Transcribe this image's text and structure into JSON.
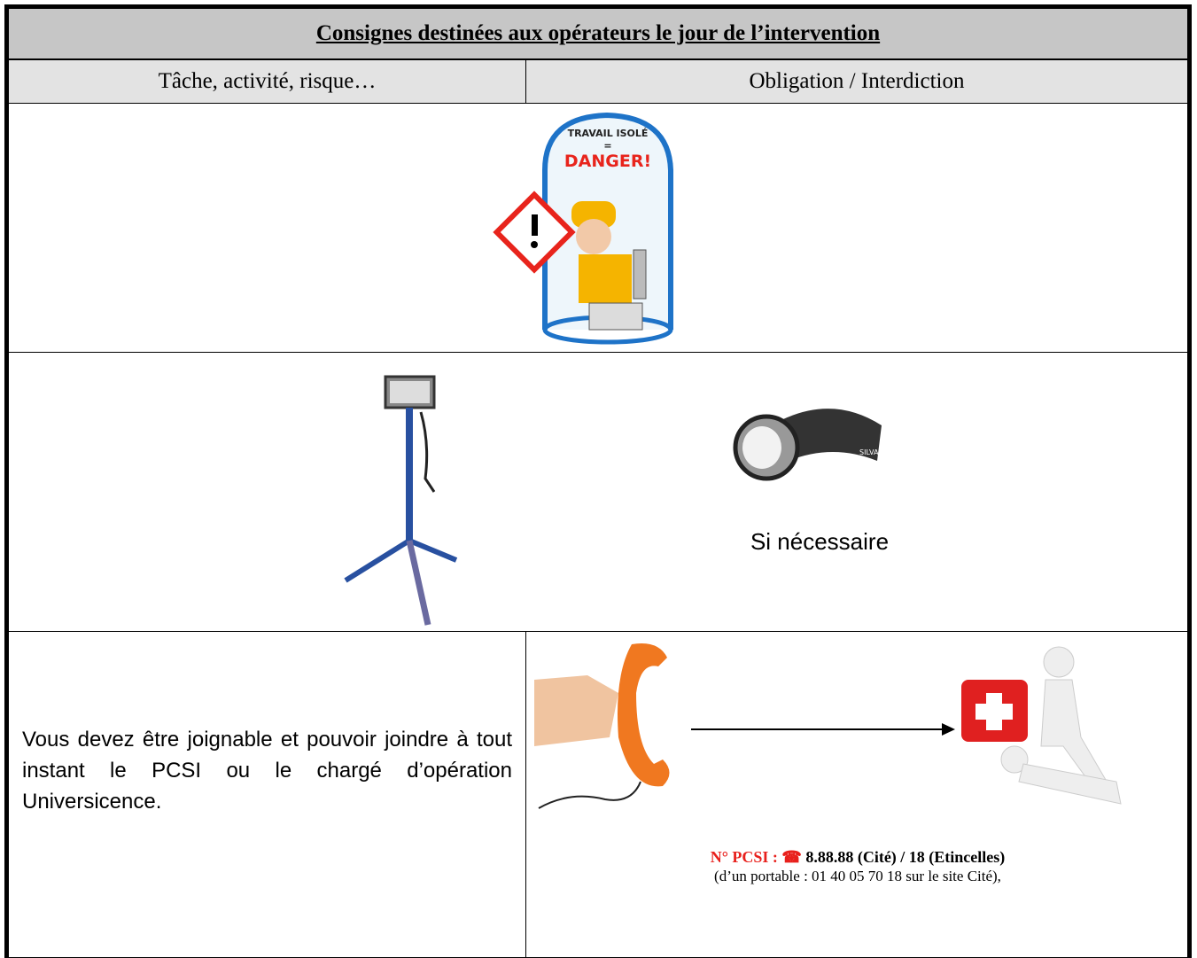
{
  "table": {
    "title": "Consignes destinées aux opérateurs le jour de l’intervention",
    "header": [
      "Tâche, activité, risque…",
      "Obligation / Interdiction"
    ],
    "rows": [
      {
        "illustration": {
          "label": "TRAVAIL ISOLÉ",
          "sign": "=",
          "warning": "DANGER!"
        }
      },
      {
        "right": {
          "brand": "SILVA",
          "note": "Si nécessaire"
        }
      },
      {
        "left": "Vous devez être joignable et pouvoir joindre à tout instant le PCSI ou le chargé d’opération Universicence.",
        "right": {
          "label": "N° PCSI :",
          "phone_icon": "☎",
          "number": "8.88.88 (Cité) / 18 (Etincelles)",
          "mobile": "(d’un portable : 01 40 05 70 18 sur le site Cité),"
        }
      }
    ]
  }
}
